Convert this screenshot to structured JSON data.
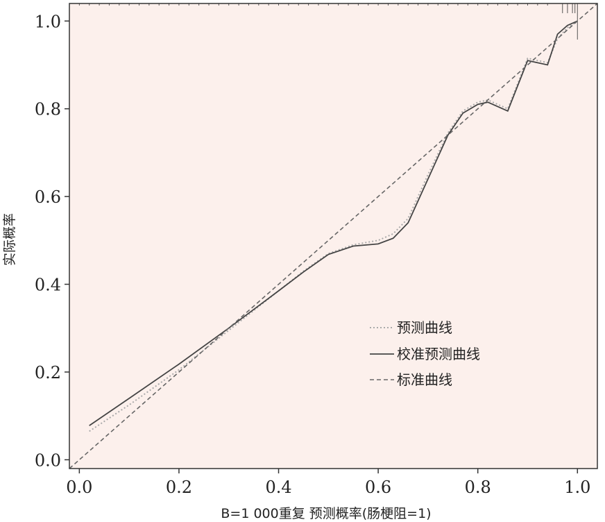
{
  "chart_data": {
    "type": "line",
    "title": "",
    "xlabel": "B=1 000重复   预测概率(肠梗阻=1)",
    "ylabel": "实际概率",
    "xlim": [
      -0.02,
      1.04
    ],
    "ylim": [
      -0.02,
      1.04
    ],
    "x_ticks": [
      0.0,
      0.2,
      0.4,
      0.6,
      0.8,
      1.0
    ],
    "y_ticks": [
      0.0,
      0.2,
      0.4,
      0.6,
      0.8,
      1.0
    ],
    "x_tick_labels": [
      "0.0",
      "0.2",
      "0.4",
      "0.6",
      "0.8",
      "1.0"
    ],
    "y_tick_labels": [
      "0.0",
      "0.2",
      "0.4",
      "0.6",
      "0.8",
      "1.0"
    ],
    "grid": false,
    "legend_position": "bottom-right",
    "background_color": "#fcf0ec",
    "series": [
      {
        "name": "预测曲线",
        "style": "dotted",
        "color": "#aaaaaa",
        "x": [
          0.02,
          0.1,
          0.2,
          0.3,
          0.4,
          0.45,
          0.5,
          0.55,
          0.6,
          0.63,
          0.66,
          0.7,
          0.74,
          0.77,
          0.8,
          0.82,
          0.86,
          0.9,
          0.94,
          0.96,
          0.98,
          1.0
        ],
        "y": [
          0.065,
          0.125,
          0.205,
          0.295,
          0.385,
          0.43,
          0.47,
          0.49,
          0.5,
          0.515,
          0.55,
          0.65,
          0.745,
          0.795,
          0.815,
          0.82,
          0.8,
          0.915,
          0.905,
          0.96,
          0.985,
          1.0
        ]
      },
      {
        "name": "校准预测曲线",
        "style": "solid",
        "color": "#444444",
        "x": [
          0.02,
          0.1,
          0.2,
          0.3,
          0.4,
          0.45,
          0.5,
          0.55,
          0.6,
          0.63,
          0.66,
          0.7,
          0.74,
          0.77,
          0.8,
          0.82,
          0.86,
          0.9,
          0.94,
          0.96,
          0.98,
          1.0
        ],
        "y": [
          0.078,
          0.14,
          0.218,
          0.3,
          0.385,
          0.428,
          0.468,
          0.487,
          0.492,
          0.505,
          0.54,
          0.64,
          0.74,
          0.79,
          0.81,
          0.815,
          0.795,
          0.91,
          0.9,
          0.97,
          0.99,
          1.0
        ]
      },
      {
        "name": "标准曲线",
        "style": "dashed",
        "color": "#666666",
        "x": [
          -0.02,
          1.04
        ],
        "y": [
          -0.02,
          1.04
        ]
      }
    ]
  }
}
